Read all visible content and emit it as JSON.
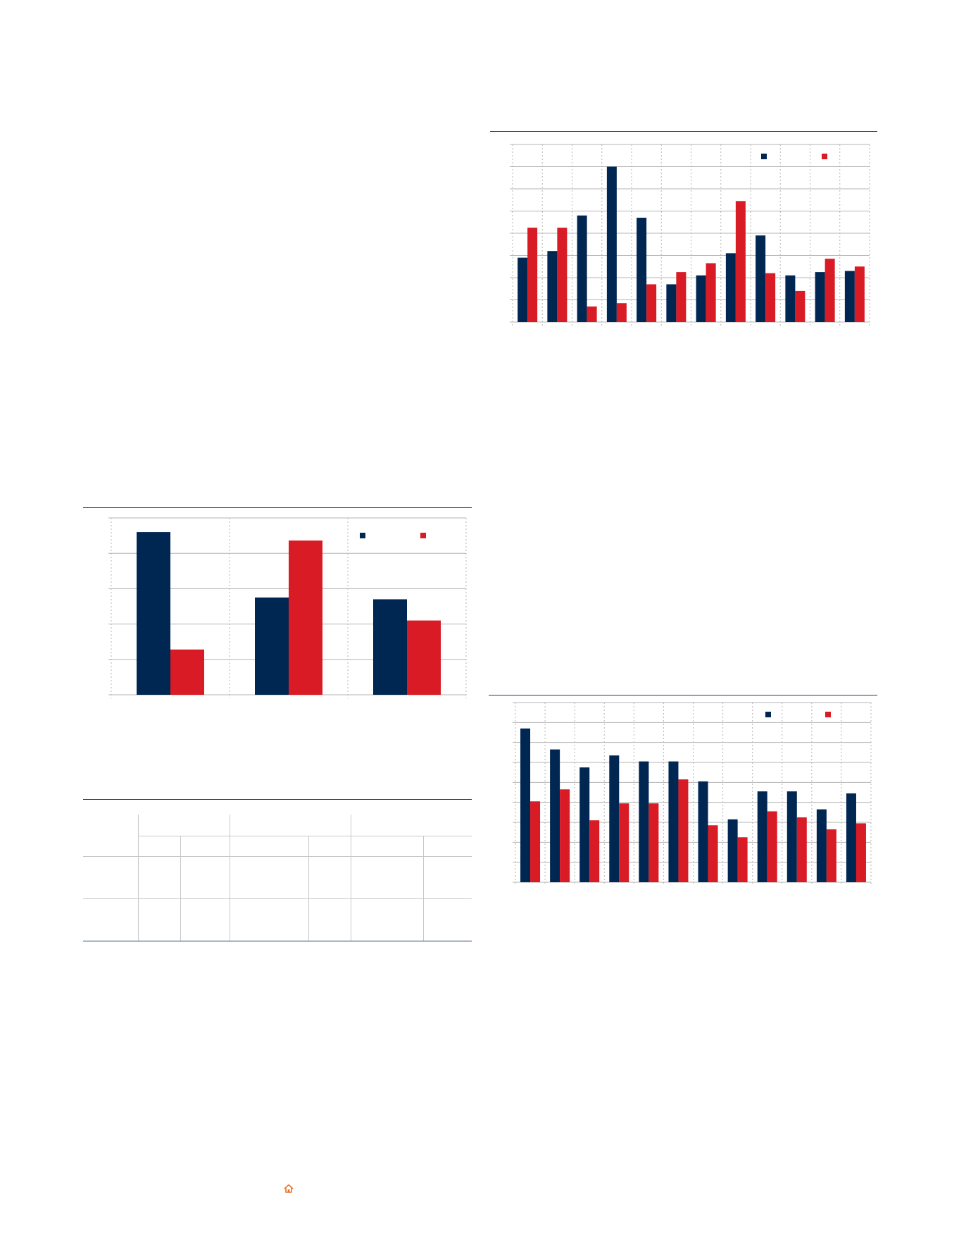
{
  "colors": {
    "navy": "#002652",
    "red": "#d81b24",
    "rule": "#1f3a6b",
    "grid": "#b5b5b5",
    "accent": "#e8732a"
  },
  "footer": {
    "icon": "home-icon"
  },
  "chart_data": [
    {
      "id": "chart-top-right",
      "type": "bar",
      "title": "",
      "xlabel": "",
      "ylabel": "",
      "ylim": [
        0,
        8
      ],
      "grid": true,
      "legend": "top-right",
      "categories": [
        "",
        "",
        "",
        "",
        "",
        "",
        "",
        "",
        "",
        "",
        "",
        ""
      ],
      "series": [
        {
          "color": "#002652",
          "values": [
            2.9,
            3.2,
            4.8,
            7.0,
            4.7,
            1.7,
            2.1,
            3.1,
            3.9,
            2.1,
            2.25,
            2.3
          ]
        },
        {
          "color": "#d81b24",
          "values": [
            4.25,
            4.25,
            0.7,
            0.85,
            1.7,
            2.25,
            2.65,
            5.45,
            2.2,
            1.4,
            2.85,
            2.5
          ]
        }
      ]
    },
    {
      "id": "chart-left",
      "type": "bar",
      "title": "",
      "xlabel": "",
      "ylabel": "",
      "ylim": [
        0,
        5
      ],
      "grid": true,
      "legend": "top-right",
      "categories": [
        "",
        "",
        ""
      ],
      "series": [
        {
          "color": "#002652",
          "values": [
            4.6,
            2.75,
            2.7
          ]
        },
        {
          "color": "#d81b24",
          "values": [
            1.28,
            4.36,
            2.1
          ]
        }
      ]
    },
    {
      "id": "chart-bottom-right",
      "type": "bar",
      "title": "",
      "xlabel": "",
      "ylabel": "",
      "ylim": [
        0,
        9
      ],
      "grid": true,
      "legend": "top-right",
      "categories": [
        "",
        "",
        "",
        "",
        "",
        "",
        "",
        "",
        "",
        "",
        "",
        ""
      ],
      "series": [
        {
          "color": "#002652",
          "values": [
            7.7,
            6.65,
            5.75,
            6.35,
            6.05,
            6.05,
            5.05,
            3.15,
            4.55,
            4.55,
            3.65,
            4.45
          ]
        },
        {
          "color": "#d81b24",
          "values": [
            4.05,
            4.65,
            3.1,
            3.95,
            3.95,
            5.15,
            2.85,
            2.25,
            3.55,
            3.25,
            2.65,
            2.95
          ]
        }
      ]
    }
  ]
}
